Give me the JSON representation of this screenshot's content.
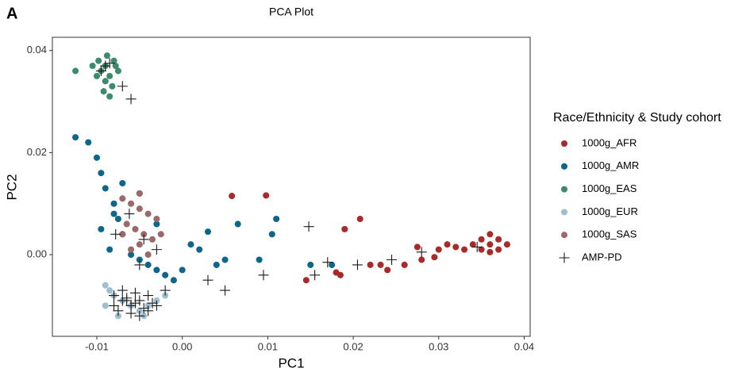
{
  "panel_label": "A",
  "chart_data": {
    "type": "scatter",
    "title": "PCA Plot",
    "xlabel": "PC1",
    "ylabel": "PC2",
    "xlim": [
      -0.0152,
      0.0407
    ],
    "ylim": [
      -0.016,
      0.0426
    ],
    "xticks": [
      -0.01,
      {
        "value": 0,
        "label": "0.00"
      },
      0.01,
      0.02,
      0.03,
      0.04
    ],
    "yticks": [
      {
        "value": 0,
        "label": "0.00"
      },
      0.02,
      0.04
    ],
    "grid": false,
    "legend": "right",
    "legend_title": "Race/Ethnicity & Study cohort",
    "series": [
      {
        "name": "1000g_AFR",
        "color": "#a82a2a",
        "marker": "circle",
        "x": [
          0.036,
          0.037,
          0.035,
          0.038,
          0.034,
          0.036,
          0.037,
          0.033,
          0.035,
          0.036,
          0.032,
          0.03,
          0.028,
          0.026,
          0.024,
          0.022,
          0.019,
          0.0185,
          0.018,
          0.0145,
          0.0208,
          0.0058,
          0.0098,
          0.0232,
          0.0275,
          0.031,
          0.0295
        ],
        "y": [
          0.002,
          0.003,
          0.001,
          0.002,
          0.002,
          0.004,
          0.001,
          0.001,
          0.003,
          0.0005,
          0.0015,
          0.001,
          -0.001,
          -0.002,
          -0.003,
          -0.002,
          0.005,
          -0.004,
          -0.0035,
          -0.005,
          0.007,
          0.0115,
          0.0116,
          -0.002,
          0.0015,
          0.002,
          -0.0005
        ]
      },
      {
        "name": "1000g_AMR",
        "color": "#0e6688",
        "marker": "circle",
        "x": [
          -0.0125,
          -0.011,
          -0.01,
          -0.0095,
          -0.009,
          -0.008,
          -0.0075,
          -0.007,
          -0.0085,
          -0.006,
          -0.005,
          -0.004,
          -0.003,
          -0.002,
          -0.001,
          0.0,
          0.001,
          0.002,
          0.004,
          0.005,
          0.009,
          0.0105,
          0.011,
          -0.0095,
          -0.008,
          -0.007,
          -0.005,
          -0.003,
          0.003,
          0.015,
          0.0175,
          0.0065
        ],
        "y": [
          0.023,
          0.022,
          0.019,
          0.016,
          0.013,
          0.01,
          0.007,
          0.004,
          0.001,
          0.0,
          -0.001,
          -0.002,
          -0.003,
          -0.004,
          -0.005,
          -0.003,
          0.002,
          0.001,
          -0.002,
          -0.001,
          -0.001,
          0.004,
          0.007,
          0.005,
          0.008,
          0.014,
          0.012,
          0.006,
          0.0045,
          -0.002,
          -0.002,
          0.006
        ]
      },
      {
        "name": "1000g_EAS",
        "color": "#3d8a6c",
        "marker": "circle",
        "x": [
          -0.0095,
          -0.009,
          -0.0085,
          -0.008,
          -0.0075,
          -0.01,
          -0.0105,
          -0.009,
          -0.0088,
          -0.0082,
          -0.0078,
          -0.0092,
          -0.0125,
          -0.0098,
          -0.0085
        ],
        "y": [
          0.036,
          0.037,
          0.035,
          0.038,
          0.036,
          0.035,
          0.037,
          0.034,
          0.039,
          0.033,
          0.037,
          0.032,
          0.036,
          0.038,
          0.031
        ]
      },
      {
        "name": "1000g_EUR",
        "color": "#9dbfcf",
        "marker": "circle",
        "x": [
          -0.009,
          -0.0085,
          -0.008,
          -0.007,
          -0.006,
          -0.005,
          -0.004,
          -0.003,
          -0.002,
          -0.009,
          -0.0075,
          -0.0045
        ],
        "y": [
          -0.006,
          -0.007,
          -0.008,
          -0.009,
          -0.01,
          -0.011,
          -0.01,
          -0.009,
          -0.008,
          -0.01,
          -0.012,
          -0.012
        ]
      },
      {
        "name": "1000g_SAS",
        "color": "#9a6a6a",
        "marker": "circle",
        "x": [
          -0.007,
          -0.006,
          -0.005,
          -0.004,
          -0.003,
          -0.0065,
          -0.0055,
          -0.0045,
          -0.0035,
          -0.005,
          -0.006,
          -0.004,
          -0.007,
          -0.0025,
          -0.005
        ],
        "y": [
          0.011,
          0.01,
          0.009,
          0.008,
          0.007,
          0.006,
          0.005,
          0.004,
          0.003,
          0.002,
          0.001,
          0.0,
          0.004,
          0.004,
          0.012
        ]
      },
      {
        "name": "AMP-PD",
        "color": "#1a1a1a",
        "marker": "plus",
        "x": [
          -0.008,
          -0.007,
          -0.006,
          -0.005,
          -0.004,
          -0.003,
          -0.0075,
          -0.0065,
          -0.0055,
          -0.0045,
          -0.0035,
          -0.008,
          -0.007,
          -0.006,
          -0.005,
          -0.004,
          -0.0065,
          -0.0055,
          -0.009,
          -0.0085,
          -0.0095,
          -0.006,
          -0.007,
          -0.0045,
          -0.002,
          0.003,
          0.005,
          0.0095,
          0.0148,
          0.0155,
          0.017,
          0.0205,
          0.0245,
          0.028,
          0.0345,
          -0.0062,
          -0.0078,
          -0.003,
          -0.005
        ],
        "y": [
          -0.008,
          -0.009,
          -0.01,
          -0.009,
          -0.008,
          -0.01,
          -0.011,
          -0.0085,
          -0.0075,
          -0.0105,
          -0.0095,
          -0.01,
          -0.007,
          -0.0115,
          -0.012,
          -0.011,
          -0.009,
          -0.0095,
          0.037,
          0.0375,
          0.036,
          0.0305,
          0.033,
          0.003,
          -0.007,
          -0.005,
          -0.007,
          -0.004,
          0.0055,
          -0.004,
          -0.0015,
          -0.002,
          -0.001,
          0.0005,
          0.0015,
          0.008,
          0.004,
          0.001,
          -0.002
        ]
      }
    ]
  }
}
